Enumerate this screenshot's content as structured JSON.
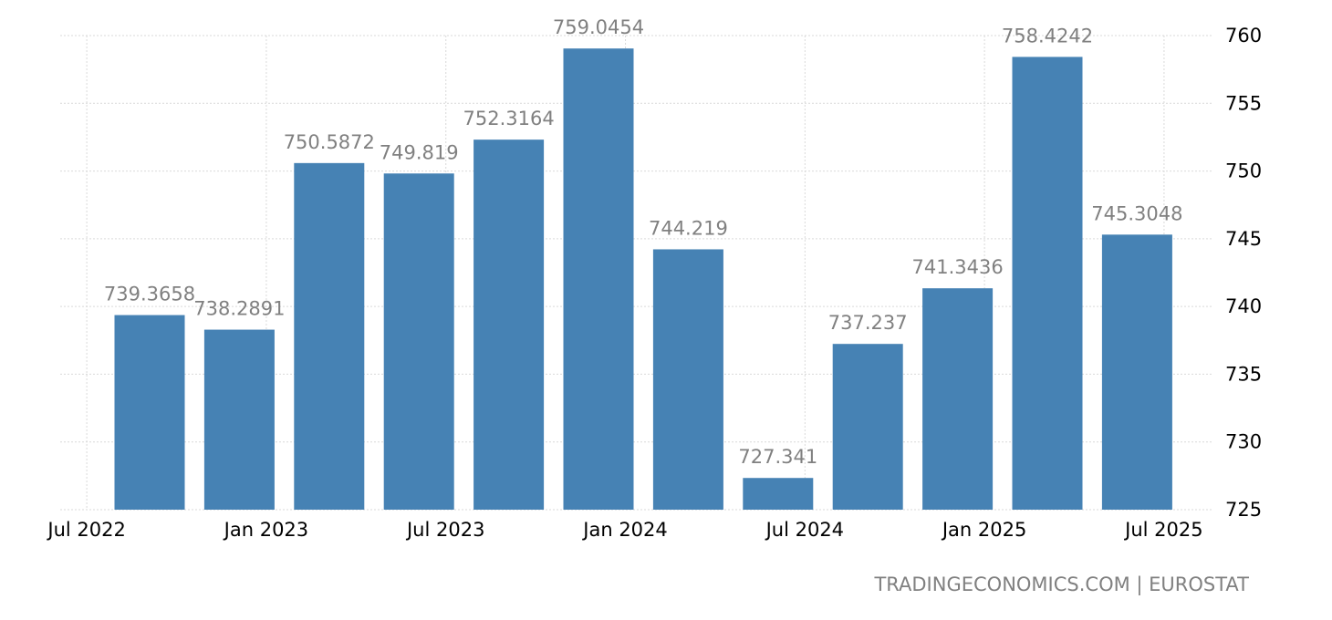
{
  "chart_data": {
    "type": "bar",
    "categories": [
      "Q3 2022",
      "Q4 2022",
      "Q1 2023",
      "Q2 2023",
      "Q3 2023",
      "Q4 2023",
      "Q1 2024",
      "Q2 2024",
      "Q3 2024",
      "Q4 2024",
      "Q1 2025",
      "Q2 2025"
    ],
    "values": [
      739.3658,
      738.2891,
      750.5872,
      749.819,
      752.3164,
      759.0454,
      744.219,
      727.341,
      737.237,
      741.3436,
      758.4242,
      745.3048
    ],
    "value_labels": [
      "739.3658",
      "738.2891",
      "750.5872",
      "749.819",
      "752.3164",
      "759.0454",
      "744.219",
      "727.341",
      "737.237",
      "741.3436",
      "758.4242",
      "745.3048"
    ],
    "x_tick_labels": [
      "Jul 2022",
      "Jan 2023",
      "Jul 2023",
      "Jan 2024",
      "Jul 2024",
      "Jan 2025",
      "Jul 2025"
    ],
    "y_ticks": [
      725,
      730,
      735,
      740,
      745,
      750,
      755,
      760
    ],
    "ylim": [
      725,
      760
    ],
    "y_axis_side": "right",
    "grid": true,
    "title": "",
    "xlabel": "",
    "ylabel": "",
    "colors": {
      "bar": "#4682b4",
      "data_label": "#808080",
      "grid": "#d9d9d9"
    }
  },
  "footer": {
    "source": "TRADINGECONOMICS.COM | EUROSTAT"
  }
}
